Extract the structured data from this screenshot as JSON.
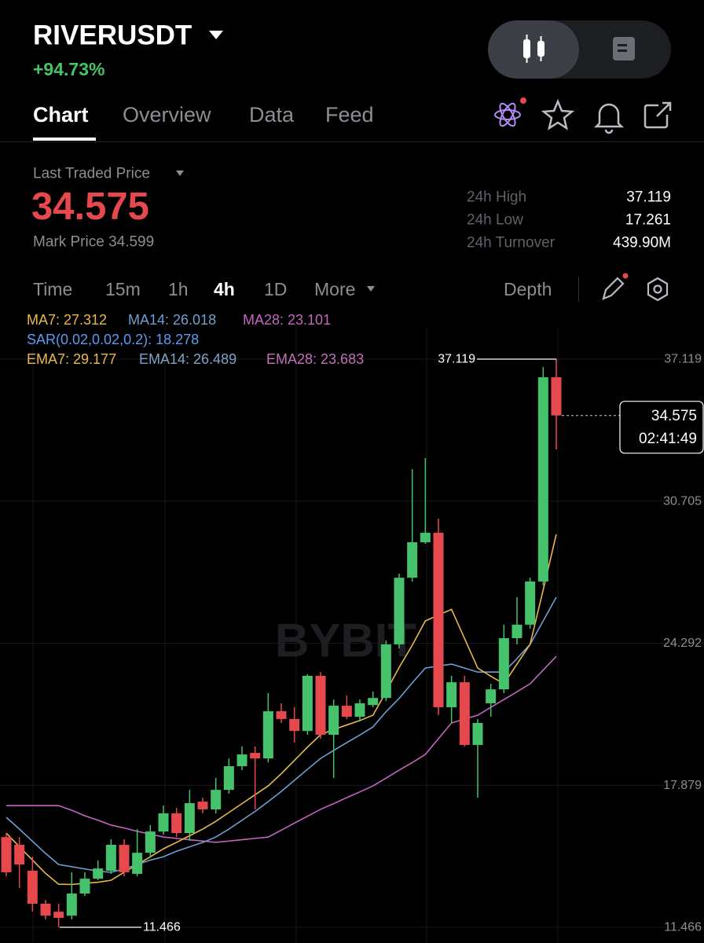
{
  "header": {
    "symbol": "RIVERUSDT",
    "change": "+94.73%"
  },
  "tabs": [
    "Chart",
    "Overview",
    "Data",
    "Feed"
  ],
  "price": {
    "label": "Last Traded Price",
    "last": "34.575",
    "mark": "Mark Price 34.599"
  },
  "stats": [
    {
      "label": "24h High",
      "value": "37.119"
    },
    {
      "label": "24h Low",
      "value": "17.261"
    },
    {
      "label": "24h Turnover",
      "value": "439.90M"
    }
  ],
  "intervals": [
    "Time",
    "15m",
    "1h",
    "4h",
    "1D",
    "More"
  ],
  "depth": "Depth",
  "indicators": {
    "ma": [
      "MA7: 27.312",
      "MA14: 26.018",
      "MA28: 23.101"
    ],
    "sar": "SAR(0.02,0.02,0.2): 18.278",
    "ema": [
      "EMA7: 29.177",
      "EMA14: 26.489",
      "EMA28: 23.683"
    ]
  },
  "chart_data": {
    "type": "candlestick",
    "watermark": "BYBIT",
    "ylim": [
      11.466,
      37.119
    ],
    "yticks": [
      11.466,
      17.879,
      24.292,
      30.705,
      37.119
    ],
    "up_color": "#46c26c",
    "down_color": "#e5484d",
    "open": [
      15.54,
      15.19,
      14.02,
      12.53,
      12.17,
      11.99,
      12.99,
      13.66,
      14.02,
      15.19,
      13.88,
      14.83,
      15.79,
      16.61,
      15.72,
      17.14,
      16.79,
      17.67,
      18.74,
      19.34,
      19.09,
      21.22,
      20.87,
      20.33,
      22.82,
      20.16,
      21.47,
      20.97,
      21.5,
      21.82,
      24.24,
      27.25,
      28.85,
      29.28,
      21.4,
      22.53,
      19.7,
      21.58,
      22.21,
      24.52,
      25.13,
      27.08,
      36.3
    ],
    "high": [
      15.72,
      15.54,
      14.65,
      12.7,
      12.53,
      13.95,
      13.95,
      14.48,
      15.44,
      15.44,
      15.9,
      16.08,
      16.96,
      16.86,
      17.67,
      17.32,
      18.21,
      19.09,
      19.63,
      19.63,
      22.04,
      21.58,
      21.4,
      22.89,
      22.99,
      21.75,
      21.93,
      21.75,
      22.11,
      24.42,
      27.43,
      32.15,
      32.65,
      29.92,
      22.82,
      22.82,
      20.87,
      22.46,
      25.13,
      26.37,
      27.25,
      36.76,
      37.119
    ],
    "low": [
      13.77,
      13.24,
      12.17,
      11.82,
      11.466,
      11.82,
      12.88,
      13.59,
      13.88,
      13.77,
      13.77,
      14.65,
      15.65,
      15.54,
      15.37,
      16.61,
      16.61,
      17.5,
      18.56,
      16.79,
      18.91,
      20.69,
      19.8,
      20.16,
      19.98,
      18.21,
      20.87,
      20.76,
      21.4,
      21.68,
      24.06,
      27.08,
      28.78,
      21.04,
      20.69,
      19.63,
      17.32,
      20.97,
      22.04,
      24.24,
      24.95,
      26.9,
      33.04
    ],
    "close": [
      13.95,
      14.3,
      12.53,
      11.99,
      11.89,
      12.99,
      13.66,
      14.12,
      15.19,
      13.95,
      14.83,
      15.79,
      16.61,
      15.72,
      17.07,
      16.79,
      17.67,
      18.74,
      19.27,
      19.09,
      21.22,
      20.87,
      20.33,
      22.82,
      20.16,
      21.47,
      20.97,
      21.58,
      21.82,
      24.24,
      27.25,
      28.85,
      29.28,
      21.4,
      22.53,
      19.7,
      20.69,
      22.21,
      24.52,
      25.13,
      27.08,
      36.3,
      34.575
    ],
    "series": [
      {
        "color": "#c466c0",
        "values": [
          16.96,
          16.96,
          16.96,
          16.96,
          16.96,
          16.75,
          16.5,
          16.3,
          16.08,
          15.95,
          15.8,
          15.67,
          15.54,
          15.48,
          15.42,
          15.36,
          15.3,
          15.36,
          15.42,
          15.48,
          15.54,
          15.85,
          16.17,
          16.48,
          16.79,
          17.05,
          17.32,
          17.58,
          17.85,
          18.2,
          18.56,
          18.9,
          19.27,
          19.98,
          20.69,
          20.87,
          21.04,
          21.4,
          21.75,
          22.1,
          22.46,
          23.08,
          23.7
        ]
      },
      {
        "color": "#6f9fd0",
        "values": [
          16.43,
          15.9,
          15.35,
          14.8,
          14.3,
          14.2,
          14.1,
          14.0,
          13.95,
          14.1,
          14.3,
          14.5,
          14.65,
          14.9,
          15.1,
          15.3,
          15.54,
          15.9,
          16.3,
          16.7,
          17.14,
          17.6,
          18.1,
          18.6,
          19.09,
          19.45,
          19.8,
          20.15,
          20.51,
          21.2,
          21.8,
          22.5,
          23.17,
          23.26,
          23.35,
          23.17,
          22.99,
          22.99,
          22.99,
          23.6,
          24.24,
          25.3,
          26.37
        ]
      },
      {
        "color": "#e8b84a",
        "values": [
          15.72,
          15.1,
          14.5,
          13.9,
          13.41,
          13.4,
          13.45,
          13.5,
          13.59,
          13.95,
          14.3,
          14.65,
          15.01,
          15.3,
          15.6,
          15.9,
          16.25,
          16.65,
          17.05,
          17.45,
          17.85,
          18.4,
          19.0,
          19.6,
          20.16,
          20.4,
          20.6,
          20.8,
          21.04,
          22.1,
          23.2,
          24.2,
          25.3,
          25.56,
          25.82,
          24.5,
          23.17,
          22.8,
          22.46,
          23.35,
          24.24,
          26.7,
          29.21
        ]
      }
    ],
    "high_label": 37.119,
    "low_label": 11.466,
    "last_price": 34.575,
    "countdown": "02:41:49"
  }
}
